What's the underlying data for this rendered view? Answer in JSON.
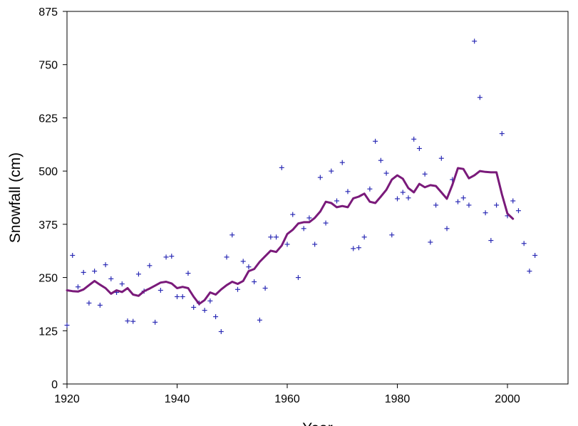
{
  "chart_data": {
    "type": "scatter",
    "title": "",
    "xlabel": "Year",
    "ylabel": "Snowfall (cm)",
    "xlim": [
      1920,
      2011
    ],
    "ylim": [
      0,
      875
    ],
    "xticks": [
      1920,
      1940,
      1960,
      1980,
      2000
    ],
    "yticks": [
      0,
      125,
      250,
      375,
      500,
      625,
      750,
      875
    ],
    "grid": false,
    "legend": "none",
    "colors": {
      "points": "#2b2bb5",
      "line": "#7a1a7a",
      "axis": "#000000"
    },
    "series": [
      {
        "marker": "plus",
        "points": [
          [
            1920,
            138
          ],
          [
            1921,
            302
          ],
          [
            1922,
            228
          ],
          [
            1923,
            262
          ],
          [
            1924,
            190
          ],
          [
            1925,
            265
          ],
          [
            1926,
            185
          ],
          [
            1927,
            280
          ],
          [
            1928,
            247
          ],
          [
            1929,
            215
          ],
          [
            1930,
            235
          ],
          [
            1931,
            148
          ],
          [
            1932,
            147
          ],
          [
            1933,
            258
          ],
          [
            1934,
            218
          ],
          [
            1935,
            278
          ],
          [
            1936,
            145
          ],
          [
            1937,
            220
          ],
          [
            1938,
            298
          ],
          [
            1939,
            300
          ],
          [
            1940,
            205
          ],
          [
            1941,
            205
          ],
          [
            1942,
            260
          ],
          [
            1943,
            180
          ],
          [
            1944,
            190
          ],
          [
            1945,
            173
          ],
          [
            1946,
            195
          ],
          [
            1947,
            158
          ],
          [
            1948,
            123
          ],
          [
            1949,
            298
          ],
          [
            1950,
            350
          ],
          [
            1951,
            222
          ],
          [
            1952,
            288
          ],
          [
            1953,
            275
          ],
          [
            1954,
            240
          ],
          [
            1955,
            150
          ],
          [
            1956,
            225
          ],
          [
            1957,
            345
          ],
          [
            1958,
            345
          ],
          [
            1959,
            508
          ],
          [
            1960,
            328
          ],
          [
            1961,
            398
          ],
          [
            1962,
            250
          ],
          [
            1963,
            365
          ],
          [
            1964,
            390
          ],
          [
            1965,
            328
          ],
          [
            1966,
            485
          ],
          [
            1967,
            378
          ],
          [
            1968,
            500
          ],
          [
            1969,
            430
          ],
          [
            1970,
            520
          ],
          [
            1971,
            452
          ],
          [
            1972,
            318
          ],
          [
            1973,
            320
          ],
          [
            1974,
            345
          ],
          [
            1975,
            458
          ],
          [
            1976,
            570
          ],
          [
            1977,
            525
          ],
          [
            1978,
            495
          ],
          [
            1979,
            350
          ],
          [
            1980,
            435
          ],
          [
            1981,
            450
          ],
          [
            1982,
            437
          ],
          [
            1983,
            575
          ],
          [
            1984,
            553
          ],
          [
            1985,
            493
          ],
          [
            1986,
            333
          ],
          [
            1987,
            420
          ],
          [
            1988,
            530
          ],
          [
            1989,
            365
          ],
          [
            1990,
            480
          ],
          [
            1991,
            428
          ],
          [
            1992,
            437
          ],
          [
            1993,
            420
          ],
          [
            1994,
            805
          ],
          [
            1995,
            673
          ],
          [
            1996,
            402
          ],
          [
            1997,
            337
          ],
          [
            1998,
            420
          ],
          [
            1999,
            588
          ],
          [
            2000,
            395
          ],
          [
            2001,
            430
          ],
          [
            2002,
            407
          ],
          [
            2003,
            330
          ],
          [
            2004,
            265
          ],
          [
            2005,
            302
          ]
        ]
      },
      {
        "marker": "line",
        "points": [
          [
            1920,
            220
          ],
          [
            1921,
            218
          ],
          [
            1922,
            217
          ],
          [
            1923,
            222
          ],
          [
            1924,
            232
          ],
          [
            1925,
            242
          ],
          [
            1926,
            233
          ],
          [
            1927,
            225
          ],
          [
            1928,
            212
          ],
          [
            1929,
            220
          ],
          [
            1930,
            216
          ],
          [
            1931,
            225
          ],
          [
            1932,
            210
          ],
          [
            1933,
            207
          ],
          [
            1934,
            218
          ],
          [
            1935,
            224
          ],
          [
            1936,
            231
          ],
          [
            1937,
            238
          ],
          [
            1938,
            240
          ],
          [
            1939,
            236
          ],
          [
            1940,
            225
          ],
          [
            1941,
            228
          ],
          [
            1942,
            225
          ],
          [
            1943,
            205
          ],
          [
            1944,
            188
          ],
          [
            1945,
            197
          ],
          [
            1946,
            215
          ],
          [
            1947,
            210
          ],
          [
            1948,
            222
          ],
          [
            1949,
            232
          ],
          [
            1950,
            240
          ],
          [
            1951,
            235
          ],
          [
            1952,
            242
          ],
          [
            1953,
            265
          ],
          [
            1954,
            270
          ],
          [
            1955,
            287
          ],
          [
            1956,
            300
          ],
          [
            1957,
            313
          ],
          [
            1958,
            310
          ],
          [
            1959,
            325
          ],
          [
            1960,
            352
          ],
          [
            1961,
            362
          ],
          [
            1962,
            377
          ],
          [
            1963,
            380
          ],
          [
            1964,
            380
          ],
          [
            1965,
            390
          ],
          [
            1966,
            405
          ],
          [
            1967,
            428
          ],
          [
            1968,
            425
          ],
          [
            1969,
            415
          ],
          [
            1970,
            418
          ],
          [
            1971,
            415
          ],
          [
            1972,
            436
          ],
          [
            1973,
            440
          ],
          [
            1974,
            447
          ],
          [
            1975,
            428
          ],
          [
            1976,
            425
          ],
          [
            1977,
            440
          ],
          [
            1978,
            456
          ],
          [
            1979,
            480
          ],
          [
            1980,
            490
          ],
          [
            1981,
            482
          ],
          [
            1982,
            460
          ],
          [
            1983,
            450
          ],
          [
            1984,
            470
          ],
          [
            1985,
            462
          ],
          [
            1986,
            467
          ],
          [
            1987,
            465
          ],
          [
            1988,
            450
          ],
          [
            1989,
            435
          ],
          [
            1990,
            468
          ],
          [
            1991,
            507
          ],
          [
            1992,
            505
          ],
          [
            1993,
            483
          ],
          [
            1994,
            490
          ],
          [
            1995,
            500
          ],
          [
            1996,
            498
          ],
          [
            1997,
            497
          ],
          [
            1998,
            497
          ],
          [
            1999,
            445
          ],
          [
            2000,
            400
          ],
          [
            2001,
            388
          ]
        ]
      }
    ]
  }
}
